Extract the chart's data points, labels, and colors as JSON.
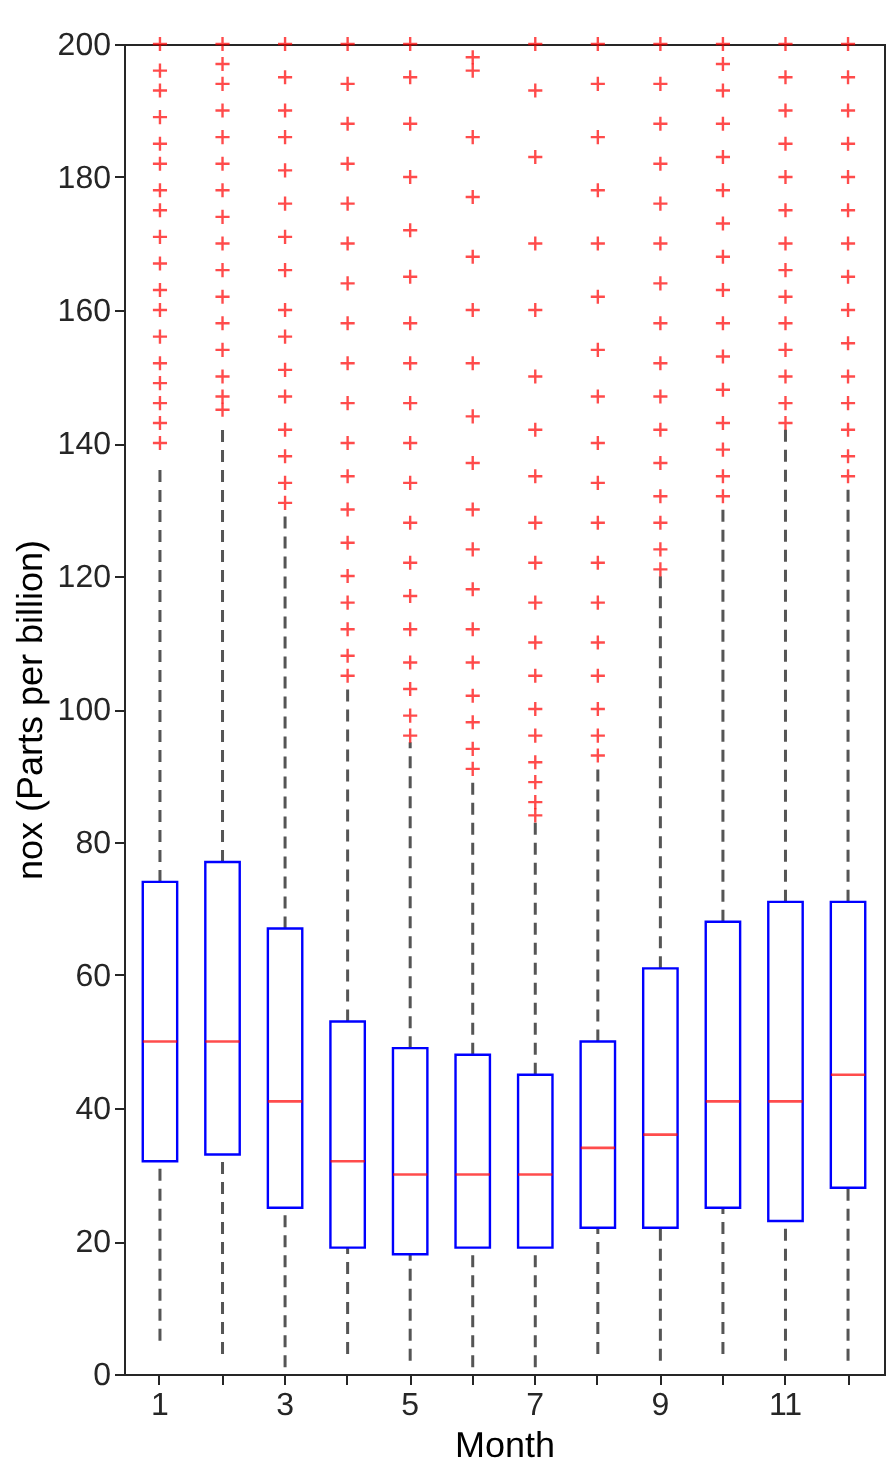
{
  "chart_data": {
    "type": "box",
    "xlabel": "Month",
    "ylabel": "nox (Parts per billion)",
    "categories": [
      "1",
      null,
      "3",
      null,
      "5",
      null,
      "7",
      null,
      "9",
      null,
      "11",
      null
    ],
    "ylim": [
      0,
      200
    ],
    "yticks": [
      0,
      20,
      40,
      60,
      80,
      100,
      120,
      140,
      160,
      180,
      200
    ],
    "grid": false,
    "marker": "cross",
    "line_style": "dashed",
    "series": [
      {
        "color": "#0000ff",
        "boxes": [
          {
            "low": 5,
            "q1": 32,
            "median": 50,
            "q3": 74,
            "high": 137,
            "outliers": [
              140,
              143,
              146,
              149,
              152,
              156,
              160,
              163,
              167,
              171,
              175,
              178,
              182,
              185,
              189,
              193,
              196,
              200
            ]
          },
          {
            "low": 3,
            "q1": 33,
            "median": 50,
            "q3": 77,
            "high": 143,
            "outliers": [
              145,
              147,
              150,
              154,
              158,
              162,
              166,
              170,
              174,
              178,
              182,
              186,
              190,
              194,
              197,
              200
            ]
          },
          {
            "low": 1,
            "q1": 25,
            "median": 41,
            "q3": 67,
            "high": 130,
            "outliers": [
              131,
              134,
              138,
              142,
              147,
              151,
              156,
              160,
              166,
              171,
              176,
              181,
              186,
              190,
              195,
              200
            ]
          },
          {
            "low": 3,
            "q1": 19,
            "median": 32,
            "q3": 53,
            "high": 103,
            "outliers": [
              105,
              108,
              112,
              116,
              120,
              125,
              130,
              135,
              140,
              146,
              152,
              158,
              164,
              170,
              176,
              182,
              188,
              194,
              200
            ]
          },
          {
            "low": 2,
            "q1": 18,
            "median": 30,
            "q3": 49,
            "high": 95,
            "outliers": [
              96,
              99,
              103,
              107,
              112,
              117,
              122,
              128,
              134,
              140,
              146,
              152,
              158,
              165,
              172,
              180,
              188,
              195,
              200
            ]
          },
          {
            "low": 1,
            "q1": 19,
            "median": 30,
            "q3": 48,
            "high": 90,
            "outliers": [
              91,
              94,
              98,
              102,
              107,
              112,
              118,
              124,
              130,
              137,
              144,
              152,
              160,
              168,
              177,
              186,
              196,
              198
            ]
          },
          {
            "low": 1,
            "q1": 19,
            "median": 30,
            "q3": 45,
            "high": 83,
            "outliers": [
              84,
              86,
              89,
              92,
              96,
              100,
              105,
              110,
              116,
              122,
              128,
              135,
              142,
              150,
              160,
              170,
              183,
              193,
              200
            ]
          },
          {
            "low": 3,
            "q1": 22,
            "median": 34,
            "q3": 50,
            "high": 92,
            "outliers": [
              93,
              96,
              100,
              105,
              110,
              116,
              122,
              128,
              134,
              140,
              147,
              154,
              162,
              170,
              178,
              186,
              194,
              200
            ]
          },
          {
            "low": 2,
            "q1": 22,
            "median": 36,
            "q3": 61,
            "high": 120,
            "outliers": [
              121,
              124,
              128,
              132,
              137,
              142,
              147,
              152,
              158,
              164,
              170,
              176,
              182,
              188,
              194,
              200
            ]
          },
          {
            "low": 3,
            "q1": 25,
            "median": 41,
            "q3": 68,
            "high": 131,
            "outliers": [
              132,
              135,
              139,
              143,
              148,
              153,
              158,
              163,
              168,
              173,
              178,
              183,
              188,
              193,
              197,
              200
            ]
          },
          {
            "low": 2,
            "q1": 23,
            "median": 41,
            "q3": 71,
            "high": 142,
            "outliers": [
              143,
              146,
              150,
              154,
              158,
              162,
              166,
              170,
              175,
              180,
              185,
              190,
              195,
              200
            ]
          },
          {
            "low": 2,
            "q1": 28,
            "median": 45,
            "q3": 71,
            "high": 134,
            "outliers": [
              135,
              138,
              142,
              146,
              150,
              155,
              160,
              165,
              170,
              175,
              180,
              185,
              190,
              195,
              200
            ]
          }
        ]
      }
    ]
  }
}
